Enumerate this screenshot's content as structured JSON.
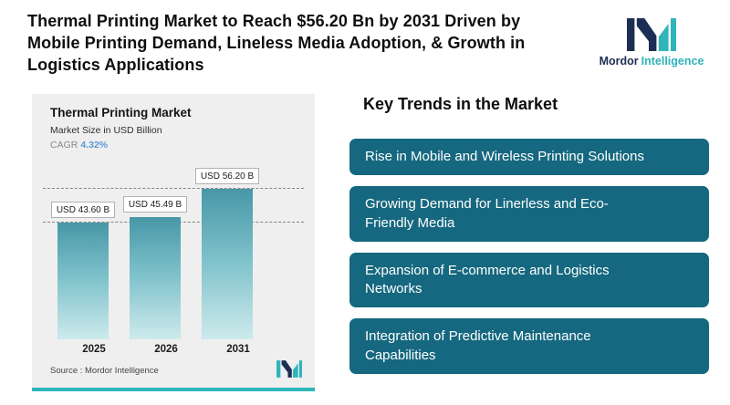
{
  "header": {
    "title": "Thermal Printing Market to Reach $56.20 Bn by 2031 Driven by Mobile Printing Demand, Lineless Media Adoption, & Growth in Logistics Applications"
  },
  "logo": {
    "brand_part1": "Mordor",
    "brand_part2": "Intelligence"
  },
  "chart": {
    "title": "Thermal Printing Market",
    "subtitle": "Market Size in USD Billion",
    "cagr_label": "CAGR",
    "cagr_value": "4.32%",
    "source_label": "Source :  Mordor Intelligence"
  },
  "chart_data": {
    "type": "bar",
    "title": "Thermal Printing Market",
    "ylabel": "Market Size in USD Billion",
    "unit": "USD Billion",
    "cagr_pct": 4.32,
    "categories": [
      "2025",
      "2026",
      "2031"
    ],
    "values": [
      43.6,
      45.49,
      56.2
    ],
    "value_labels": [
      "USD 43.60 B",
      "USD 45.49 B",
      "USD 56.20 B"
    ],
    "ylim": [
      0,
      60
    ],
    "legend": "none",
    "grid": "none",
    "reference_lines": [
      43.6,
      56.2
    ]
  },
  "trends": {
    "heading": "Key Trends in the Market",
    "items": [
      {
        "label": "Rise in Mobile and Wireless Printing Solutions"
      },
      {
        "label": "Growing Demand for Linerless and Eco-Friendly Media"
      },
      {
        "label": "Expansion of E-commerce and Logistics Networks"
      },
      {
        "label": "Integration of Predictive Maintenance Capabilities"
      }
    ]
  },
  "colors": {
    "navy": "#1d2e54",
    "teal": "#2fb4ba",
    "trend_box": "#15687f",
    "cagr_blue": "#5b9bd5",
    "panel_bg": "#efefef",
    "bar_top": "#4797a7",
    "bar_bottom": "#cdeaec"
  }
}
